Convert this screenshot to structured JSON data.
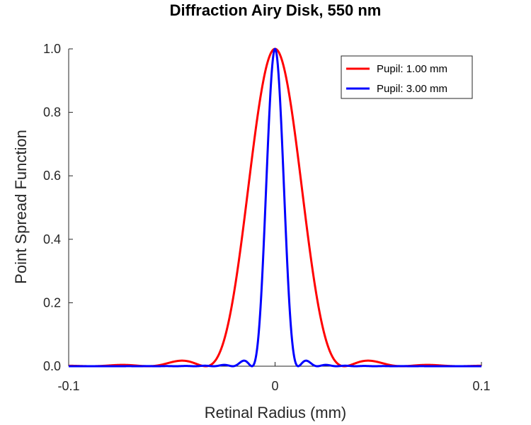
{
  "chart_data": {
    "type": "line",
    "title": "Diffraction Airy Disk, 550 nm",
    "xlabel": "Retinal Radius (mm)",
    "ylabel": "Point Spread Function",
    "xlim": [
      -0.1,
      0.1
    ],
    "ylim": [
      0,
      1
    ],
    "xticks": [
      -0.1,
      0,
      0.1
    ],
    "xtick_labels": [
      "-0.1",
      "0",
      "0.1"
    ],
    "yticks": [
      0,
      0.2,
      0.4,
      0.6,
      0.8,
      1.0
    ],
    "ytick_labels": [
      "0.0",
      "0.2",
      "0.4",
      "0.6",
      "0.8",
      "1.0"
    ],
    "grid": false,
    "legend_position": "top-right",
    "series": [
      {
        "name": "Pupil: 1.00 mm",
        "color": "#ff0000",
        "first_zero_radius_mm": 0.0336,
        "x": [
          -0.1,
          -0.09,
          -0.085,
          -0.08,
          -0.075,
          -0.07,
          -0.065,
          -0.06,
          -0.055,
          -0.05,
          -0.045,
          -0.04,
          -0.035,
          -0.03,
          -0.025,
          -0.02,
          -0.015,
          -0.01,
          -0.005,
          0,
          0.005,
          0.01,
          0.015,
          0.02,
          0.025,
          0.03,
          0.035,
          0.04,
          0.045,
          0.05,
          0.055,
          0.06,
          0.065,
          0.07,
          0.075,
          0.08,
          0.085,
          0.09,
          0.1
        ],
        "values": [
          0.001,
          0.002,
          0.004,
          0.002,
          0.0,
          0.002,
          0.008,
          0.015,
          0.017,
          0.014,
          0.005,
          0.0,
          0.001,
          0.03,
          0.15,
          0.36,
          0.63,
          0.85,
          0.96,
          1.0,
          0.96,
          0.85,
          0.63,
          0.36,
          0.15,
          0.03,
          0.001,
          0.0,
          0.005,
          0.014,
          0.017,
          0.015,
          0.008,
          0.002,
          0.0,
          0.002,
          0.004,
          0.002,
          0.001
        ]
      },
      {
        "name": "Pupil: 3.00 mm",
        "color": "#0000ff",
        "first_zero_radius_mm": 0.0112,
        "x": [
          -0.1,
          -0.05,
          -0.03,
          -0.025,
          -0.02,
          -0.018,
          -0.016,
          -0.014,
          -0.012,
          -0.01,
          -0.008,
          -0.006,
          -0.004,
          -0.002,
          0,
          0.002,
          0.004,
          0.006,
          0.008,
          0.01,
          0.012,
          0.014,
          0.016,
          0.018,
          0.02,
          0.025,
          0.03,
          0.05,
          0.1
        ],
        "values": [
          0.0,
          0.0,
          0.002,
          0.004,
          0.002,
          0.008,
          0.016,
          0.008,
          0.0,
          0.04,
          0.25,
          0.55,
          0.81,
          0.95,
          1.0,
          0.95,
          0.81,
          0.55,
          0.25,
          0.04,
          0.0,
          0.008,
          0.016,
          0.008,
          0.002,
          0.004,
          0.002,
          0.0,
          0.0
        ]
      }
    ]
  }
}
